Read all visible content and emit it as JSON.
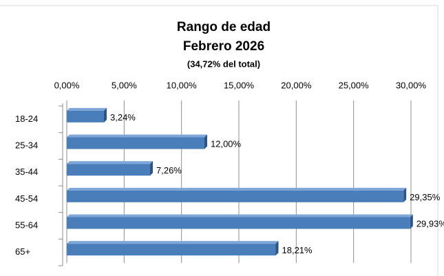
{
  "chart_data": {
    "type": "bar",
    "orientation": "horizontal",
    "title": "Rango de edad",
    "subtitle": "Febrero 2026",
    "annotation": "(34,72% del total)",
    "categories": [
      "18-24",
      "25-34",
      "35-44",
      "45-54",
      "55-64",
      "65+"
    ],
    "values": [
      3.24,
      12.0,
      7.26,
      29.35,
      29.93,
      18.21
    ],
    "value_labels": [
      "3,24%",
      "12,00%",
      "7,26%",
      "29,35%",
      "29,93%",
      "18,21%"
    ],
    "color": "#4a7ebb",
    "xlim": [
      0,
      30
    ],
    "xticks": [
      {
        "value": 0,
        "label": "0,00%"
      },
      {
        "value": 5,
        "label": "5,00%"
      },
      {
        "value": 10,
        "label": "10,00%"
      },
      {
        "value": 15,
        "label": "15,00%"
      },
      {
        "value": 20,
        "label": "20,00%"
      },
      {
        "value": 25,
        "label": "25,00%"
      },
      {
        "value": 30,
        "label": "30,00%"
      }
    ],
    "grid": true
  }
}
